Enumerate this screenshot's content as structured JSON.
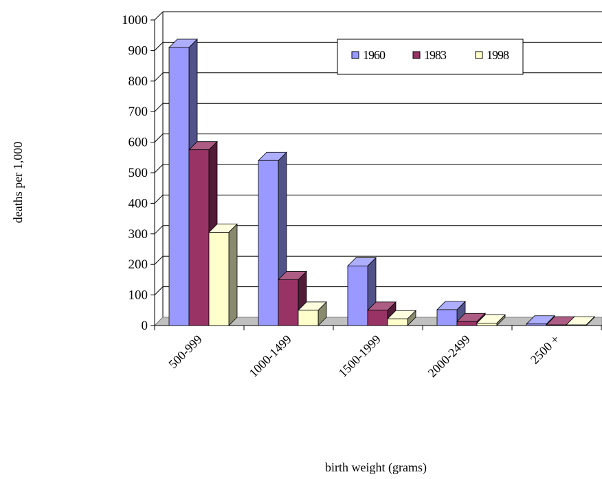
{
  "chart_data": {
    "type": "bar",
    "title": "",
    "xlabel": "birth weight (grams)",
    "ylabel": "deaths per 1,000",
    "ylim": [
      0,
      1000
    ],
    "yticks": [
      0,
      100,
      200,
      300,
      400,
      500,
      600,
      700,
      800,
      900,
      1000
    ],
    "categories": [
      "500-999",
      "1000-1499",
      "1500-1999",
      "2000-2499",
      "2500 +"
    ],
    "series": [
      {
        "name": "1960",
        "values": [
          910,
          540,
          195,
          52,
          5
        ]
      },
      {
        "name": "1983",
        "values": [
          575,
          150,
          50,
          13,
          2
        ]
      },
      {
        "name": "1998",
        "values": [
          305,
          50,
          22,
          8,
          2
        ]
      }
    ],
    "legend_position": "top-right",
    "grid": true,
    "style": "3d-clustered-columns"
  },
  "colors": {
    "series": [
      {
        "front": "#9999ff",
        "top": "#aeaeff",
        "side": "#52528a"
      },
      {
        "front": "#993366",
        "top": "#ad5c84",
        "side": "#521b37"
      },
      {
        "front": "#ffffcc",
        "top": "#ffffe0",
        "side": "#8a8a6e"
      }
    ],
    "floor": "#c0c0c0",
    "grid": "#000000",
    "axis": "#000000"
  }
}
